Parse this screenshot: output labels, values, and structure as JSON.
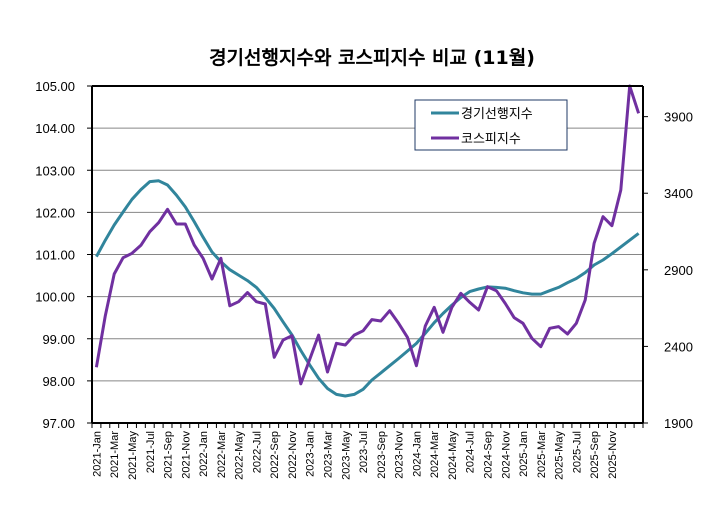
{
  "chart_data": {
    "type": "line",
    "title": "경기선행지수와 코스피지수 비교 (11월)",
    "xlabel": "",
    "categories": [
      "2021-Jan",
      "2021-Feb",
      "2021-Mar",
      "2021-Apr",
      "2021-May",
      "2021-Jun",
      "2021-Jul",
      "2021-Aug",
      "2021-Sep",
      "2021-Oct",
      "2021-Nov",
      "2021-Dec",
      "2022-Jan",
      "2022-Feb",
      "2022-Mar",
      "2022-Apr",
      "2022-May",
      "2022-Jun",
      "2022-Jul",
      "2022-Aug",
      "2022-Sep",
      "2022-Oct",
      "2022-Nov",
      "2022-Dec",
      "2023-Jan",
      "2023-Feb",
      "2023-Mar",
      "2023-Apr",
      "2023-May",
      "2023-Jun",
      "2023-Jul",
      "2023-Aug",
      "2023-Sep",
      "2023-Oct",
      "2023-Nov",
      "2023-Dec",
      "2024-Jan",
      "2024-Feb",
      "2024-Mar",
      "2024-Apr",
      "2024-May",
      "2024-Jun",
      "2024-Jul",
      "2024-Aug",
      "2024-Sep",
      "2024-Oct",
      "2024-Nov",
      "2024-Dec",
      "2025-Jan",
      "2025-Feb",
      "2025-Mar",
      "2025-Apr",
      "2025-May",
      "2025-Jun",
      "2025-Jul",
      "2025-Aug",
      "2025-Sep",
      "2025-Oct",
      "2025-Nov",
      "2025-Dec",
      "",
      ""
    ],
    "x_label_every": 2,
    "y_left": {
      "label": "",
      "lim": [
        97,
        105
      ],
      "ticks": [
        "97.00",
        "98.00",
        "99.00",
        "100.00",
        "101.00",
        "102.00",
        "103.00",
        "104.00",
        "105.00"
      ]
    },
    "y_right": {
      "label": "",
      "lim": [
        1900,
        4100
      ],
      "ticks": [
        "1900",
        "2400",
        "2900",
        "3400",
        "3900"
      ]
    },
    "grid": true,
    "legend_position": "top-right",
    "series": [
      {
        "name": "경기선행지수",
        "axis": "left",
        "color": "#31859C",
        "values": [
          100.95,
          101.34,
          101.7,
          102.01,
          102.31,
          102.54,
          102.73,
          102.75,
          102.65,
          102.41,
          102.13,
          101.78,
          101.41,
          101.06,
          100.83,
          100.64,
          100.51,
          100.38,
          100.22,
          99.98,
          99.72,
          99.4,
          99.09,
          98.72,
          98.38,
          98.06,
          97.82,
          97.68,
          97.64,
          97.68,
          97.8,
          98.02,
          98.19,
          98.36,
          98.53,
          98.71,
          98.89,
          99.13,
          99.38,
          99.6,
          99.8,
          99.98,
          100.12,
          100.18,
          100.23,
          100.22,
          100.2,
          100.14,
          100.09,
          100.06,
          100.06,
          100.14,
          100.22,
          100.33,
          100.43,
          100.57,
          100.75,
          100.87,
          101.02,
          101.18,
          101.34,
          101.5
        ]
      },
      {
        "name": "코스피지수",
        "axis": "right",
        "color": "#7030A0",
        "values": [
          2264,
          2600,
          2873,
          2979,
          3008,
          3060,
          3149,
          3208,
          3295,
          3199,
          3199,
          3062,
          2975,
          2840,
          2975,
          2665,
          2692,
          2751,
          2692,
          2677,
          2329,
          2442,
          2470,
          2155,
          2315,
          2474,
          2233,
          2420,
          2409,
          2474,
          2502,
          2575,
          2566,
          2633,
          2551,
          2459,
          2274,
          2533,
          2655,
          2492,
          2655,
          2747,
          2688,
          2638,
          2790,
          2764,
          2680,
          2588,
          2551,
          2453,
          2398,
          2518,
          2529,
          2481,
          2551,
          2703,
          3073,
          3247,
          3188,
          3421,
          4100,
          3922
        ]
      }
    ]
  }
}
